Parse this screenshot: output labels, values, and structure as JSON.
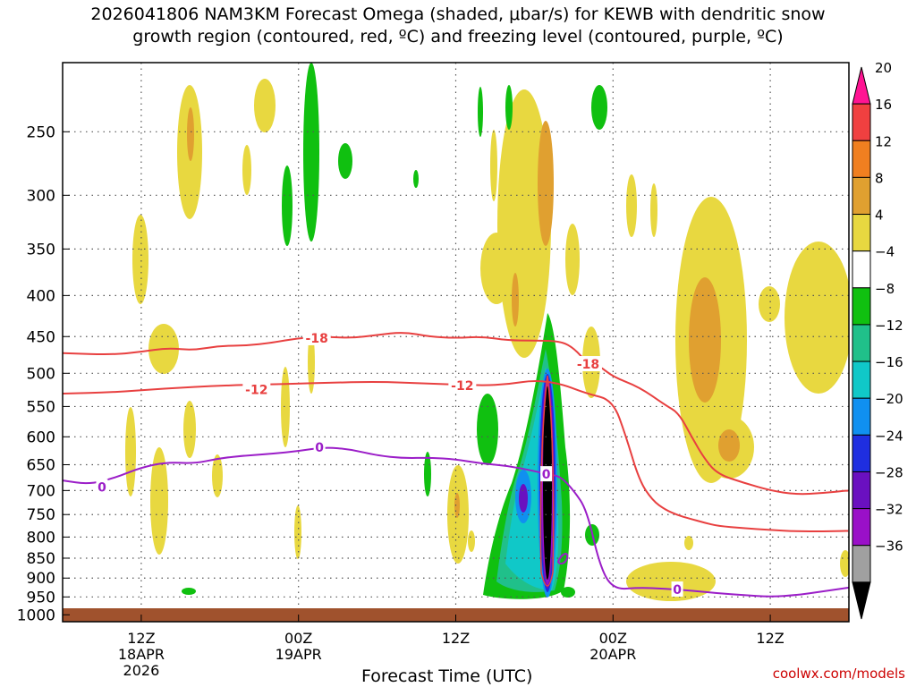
{
  "title_lines": [
    "2026041806 NAM3KM Forecast Omega (shaded, μbar/s) for KEWB with dendritic snow",
    "growth region (contoured, red, ºC) and freezing level (contoured, purple, ºC)"
  ],
  "credit": "coolwx.com/models",
  "chart_data": {
    "type": "heatmap",
    "xlabel": "Forecast Time (UTC)",
    "x_ticks": [
      {
        "hours": 6,
        "lines": [
          "12Z",
          "18APR",
          "2026"
        ]
      },
      {
        "hours": 18,
        "lines": [
          "00Z",
          "19APR"
        ]
      },
      {
        "hours": 30,
        "lines": [
          "12Z"
        ]
      },
      {
        "hours": 42,
        "lines": [
          "00Z",
          "20APR"
        ]
      },
      {
        "hours": 54,
        "lines": [
          "12Z"
        ]
      }
    ],
    "xlim_hours": [
      0,
      60
    ],
    "y_axis": "pressure (hPa), decreasing upward",
    "y_ticks": [
      "250",
      "300",
      "350",
      "400",
      "450",
      "500",
      "550",
      "600",
      "650",
      "700",
      "750",
      "800",
      "850",
      "900",
      "950",
      "1000"
    ],
    "y_values": [
      250,
      300,
      350,
      400,
      450,
      500,
      550,
      600,
      650,
      700,
      750,
      800,
      850,
      900,
      950,
      1000
    ],
    "ylim_hpa": [
      1020,
      205
    ],
    "grid": true,
    "colorbar": {
      "labels": [
        "20",
        "16",
        "12",
        "8",
        "4",
        "−4",
        "−8",
        "−12",
        "−16",
        "−20",
        "−24",
        "−28",
        "−32",
        "−36"
      ],
      "colors": [
        "#ff1493",
        "#f04040",
        "#f07f20",
        "#e0a030",
        "#e8d840",
        "#ffffff",
        "#10c010",
        "#20c08a",
        "#10c8c8",
        "#1090f0",
        "#1f2ee0",
        "#6a10c0",
        "#9a10c8",
        "#a0a0a0",
        "#000000"
      ]
    },
    "contour_labels": [
      {
        "text": "-18",
        "color": "#e84040",
        "hours": 19.4,
        "hpa": 452
      },
      {
        "text": "-18",
        "color": "#e84040",
        "hours": 40.1,
        "hpa": 487
      },
      {
        "text": "-12",
        "color": "#e84040",
        "hours": 14.8,
        "hpa": 524
      },
      {
        "text": "-12",
        "color": "#e84040",
        "hours": 30.5,
        "hpa": 518
      },
      {
        "text": "0",
        "color": "#9b1ec8",
        "hours": 3.0,
        "hpa": 693
      },
      {
        "text": "0",
        "color": "#9b1ec8",
        "hours": 19.6,
        "hpa": 618
      },
      {
        "text": "0",
        "color": "#9b1ec8",
        "hours": 36.9,
        "hpa": 668
      },
      {
        "text": "0",
        "color": "#9b1ec8",
        "hours": 46.9,
        "hpa": 930
      }
    ],
    "freezing_level_0C": {
      "hours": [
        0,
        2,
        4,
        6,
        8,
        10,
        12,
        14,
        16,
        18,
        20,
        22,
        24,
        26,
        28,
        30,
        32,
        34,
        36,
        37,
        38,
        39,
        40,
        41,
        42,
        44,
        46,
        48,
        50,
        52,
        54,
        56,
        58,
        60
      ],
      "hpa": [
        680,
        688,
        675,
        655,
        645,
        648,
        638,
        633,
        630,
        625,
        618,
        622,
        633,
        638,
        637,
        640,
        648,
        652,
        662,
        668,
        672,
        700,
        740,
        870,
        930,
        925,
        928,
        933,
        940,
        945,
        950,
        945,
        935,
        925
      ]
    },
    "dgz_minus12C": {
      "hours": [
        0,
        4,
        8,
        12,
        16,
        18,
        20,
        24,
        28,
        32,
        34,
        36,
        38,
        40,
        42,
        43,
        44,
        45,
        46,
        47,
        48,
        49,
        50,
        52,
        54,
        56,
        58,
        60
      ],
      "hpa": [
        530,
        528,
        522,
        518,
        516,
        515,
        514,
        512,
        515,
        518,
        516,
        510,
        515,
        530,
        540,
        600,
        680,
        720,
        740,
        752,
        760,
        768,
        775,
        780,
        784,
        787,
        787,
        786
      ]
    },
    "dgz_minus18C": {
      "hours": [
        0,
        4,
        6,
        8,
        10,
        12,
        14,
        16,
        18,
        20,
        22,
        24,
        26,
        28,
        30,
        32,
        34,
        36,
        38,
        39,
        40,
        41,
        42,
        44,
        46,
        47,
        48,
        49,
        50,
        52,
        54,
        56,
        58,
        60
      ],
      "hpa": [
        472,
        474,
        470,
        465,
        468,
        462,
        462,
        458,
        452,
        450,
        452,
        448,
        444,
        450,
        452,
        450,
        455,
        455,
        456,
        465,
        485,
        490,
        505,
        520,
        548,
        560,
        600,
        640,
        668,
        685,
        700,
        708,
        705,
        700
      ]
    },
    "upward_motion_core": {
      "hours_center": 38.1,
      "hpa_range": [
        500,
        955
      ],
      "min_value_ubar_s": -36
    }
  }
}
